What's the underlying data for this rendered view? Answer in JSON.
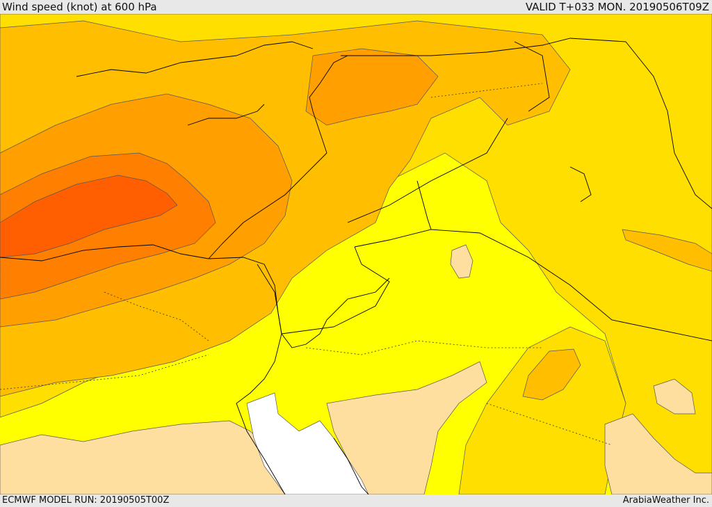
{
  "header": {
    "title": "Wind speed (knot) at 600 hPa",
    "valid": "VALID T+033 MON. 20190506T09Z"
  },
  "footer": {
    "model_run": "ECMWF MODEL RUN: 20190505T00Z",
    "credit": "ArabiaWeather Inc."
  },
  "map": {
    "colors": {
      "band_light": "#ffdf9f",
      "band_10": "#ffff00",
      "band_20": "#ffdf00",
      "band_25": "#ffbf00",
      "band_30": "#ff9f00",
      "band_35": "#ff7f00",
      "band_40": "#ff5f00",
      "sea_gap": "#ffffff",
      "border": "#000000",
      "contour": "#555555"
    }
  }
}
